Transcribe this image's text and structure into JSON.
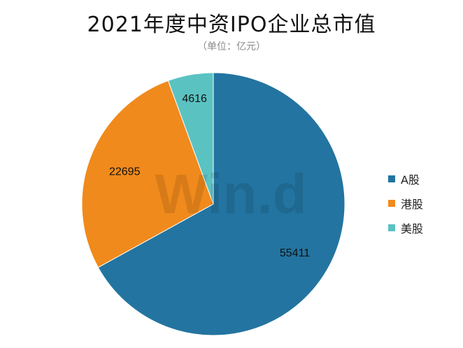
{
  "chart_data": {
    "type": "pie",
    "title": "2021年度中资IPO企业总市值",
    "subtitle": "（单位：亿元）",
    "categories": [
      "A股",
      "港股",
      "美股"
    ],
    "values": [
      55411,
      22695,
      4616
    ],
    "colors": [
      "#2374A0",
      "#F08A1C",
      "#5BC2C2"
    ],
    "legend_position": "right",
    "watermark": "Win.d"
  }
}
